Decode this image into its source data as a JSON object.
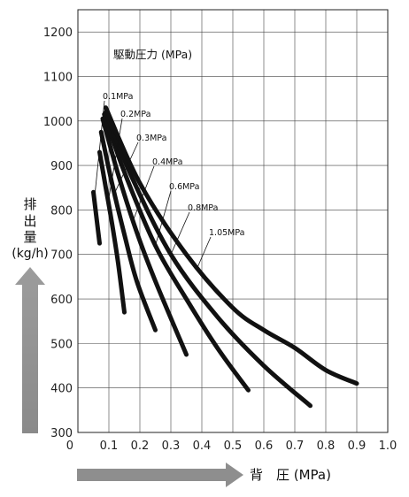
{
  "chart_data": {
    "type": "line",
    "legend_title": "駆動圧力 (MPa)",
    "xlabel": "背　圧 (MPa)",
    "ylabel_lines": [
      "排",
      "出",
      "量",
      "(kg/h)"
    ],
    "xlim": [
      0,
      1.0
    ],
    "ylim": [
      300,
      1250
    ],
    "x_ticks": [
      "0",
      "0.1",
      "0.2",
      "0.3",
      "0.4",
      "0.5",
      "0.6",
      "0.7",
      "0.8",
      "0.9",
      "1.0"
    ],
    "y_ticks": [
      "300",
      "400",
      "500",
      "600",
      "700",
      "800",
      "900",
      "1000",
      "1100",
      "1200"
    ],
    "series": [
      {
        "name": "0.1MPa",
        "x": [
          0.05,
          0.07
        ],
        "y": [
          840,
          725
        ]
      },
      {
        "name": "0.2MPa",
        "x": [
          0.07,
          0.09,
          0.11,
          0.13,
          0.15
        ],
        "y": [
          930,
          850,
          770,
          680,
          570
        ]
      },
      {
        "name": "0.3MPa",
        "x": [
          0.075,
          0.11,
          0.15,
          0.19,
          0.25
        ],
        "y": [
          975,
          860,
          745,
          640,
          530
        ]
      },
      {
        "name": "0.4MPa",
        "x": [
          0.08,
          0.13,
          0.19,
          0.25,
          0.35
        ],
        "y": [
          1005,
          880,
          750,
          640,
          475
        ]
      },
      {
        "name": "0.6MPa",
        "x": [
          0.085,
          0.15,
          0.25,
          0.35,
          0.45,
          0.55
        ],
        "y": [
          1015,
          885,
          720,
          600,
          490,
          395
        ]
      },
      {
        "name": "0.8MPa",
        "x": [
          0.09,
          0.17,
          0.3,
          0.45,
          0.6,
          0.75
        ],
        "y": [
          1020,
          880,
          700,
          560,
          450,
          360
        ]
      },
      {
        "name": "1.05MPa",
        "x": [
          0.09,
          0.2,
          0.35,
          0.5,
          0.6,
          0.7,
          0.8,
          0.9
        ],
        "y": [
          1030,
          860,
          700,
          580,
          530,
          490,
          440,
          410
        ]
      }
    ]
  }
}
